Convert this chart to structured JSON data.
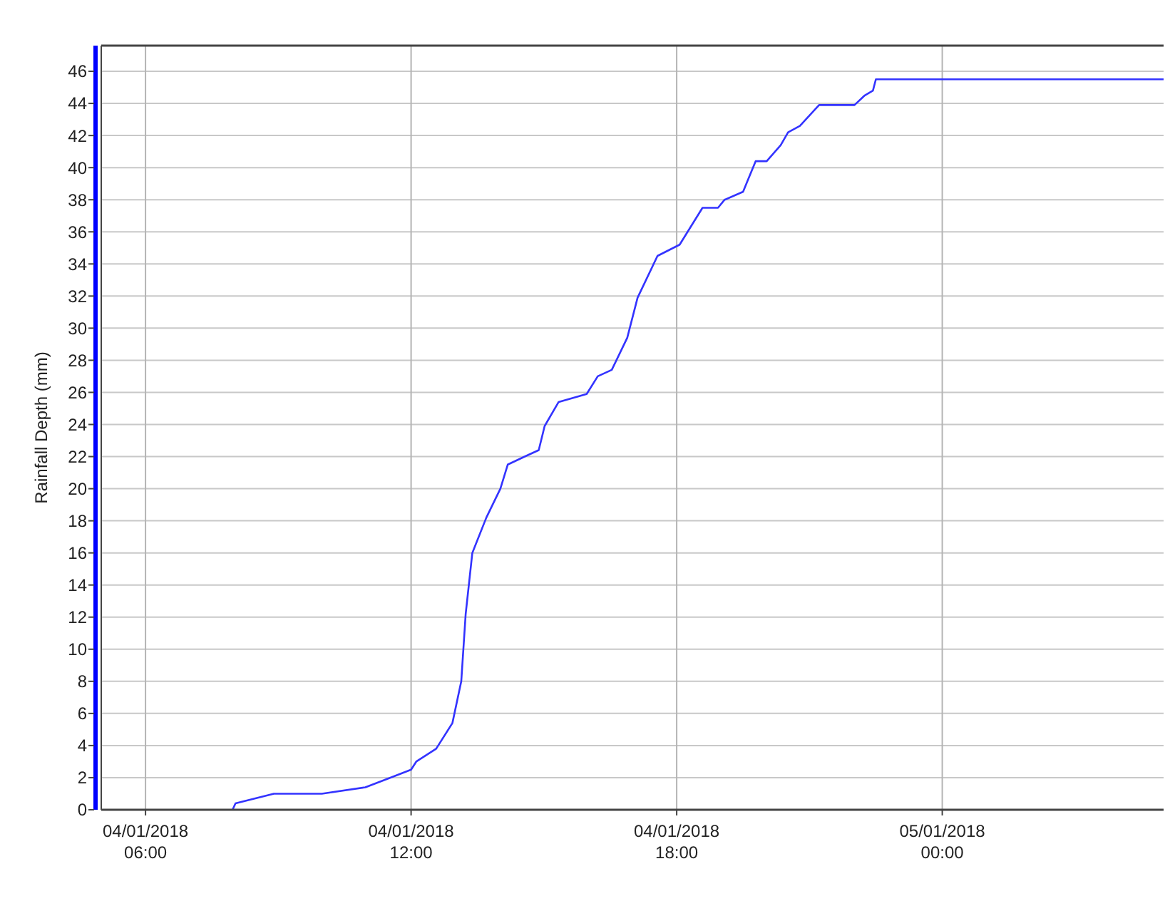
{
  "chart_data": {
    "type": "line",
    "ylabel": "Rainfall Depth (mm)",
    "grid": true,
    "marker": "none",
    "line_style": "solid",
    "xlim": [
      "2018-01-04T05:00",
      "2018-01-05T05:00"
    ],
    "xticks": [
      {
        "value": "2018-01-04T06:00",
        "label": "04/01/2018\n06:00"
      },
      {
        "value": "2018-01-04T12:00",
        "label": "04/01/2018\n12:00"
      },
      {
        "value": "2018-01-04T18:00",
        "label": "04/01/2018\n18:00"
      },
      {
        "value": "2018-01-05T00:00",
        "label": "05/01/2018\n00:00"
      }
    ],
    "ylim": [
      0,
      47.6
    ],
    "yticks": [
      0,
      2,
      4,
      6,
      8,
      10,
      12,
      14,
      16,
      18,
      20,
      22,
      24,
      26,
      28,
      30,
      32,
      34,
      36,
      38,
      40,
      42,
      44,
      46
    ],
    "series": [
      {
        "color": "#3333ff",
        "x": [
          "2018-01-04T07:58",
          "2018-01-04T08:02",
          "2018-01-04T08:54",
          "2018-01-04T09:59",
          "2018-01-04T10:58",
          "2018-01-04T11:32",
          "2018-01-04T12:00",
          "2018-01-04T12:07",
          "2018-01-04T12:34",
          "2018-01-04T12:56",
          "2018-01-04T13:08",
          "2018-01-04T13:14",
          "2018-01-04T13:23",
          "2018-01-04T13:42",
          "2018-01-04T14:01",
          "2018-01-04T14:11",
          "2018-01-04T14:34",
          "2018-01-04T14:53",
          "2018-01-04T15:01",
          "2018-01-04T15:20",
          "2018-01-04T15:58",
          "2018-01-04T16:13",
          "2018-01-04T16:32",
          "2018-01-04T16:53",
          "2018-01-04T17:07",
          "2018-01-04T17:34",
          "2018-01-04T18:04",
          "2018-01-04T18:35",
          "2018-01-04T18:56",
          "2018-01-04T19:05",
          "2018-01-04T19:30",
          "2018-01-04T19:47",
          "2018-01-04T20:02",
          "2018-01-04T20:21",
          "2018-01-04T20:31",
          "2018-01-04T20:47",
          "2018-01-04T21:13",
          "2018-01-04T22:01",
          "2018-01-04T22:15",
          "2018-01-04T22:26",
          "2018-01-04T22:30",
          "2018-01-05T05:00"
        ],
        "values": [
          0,
          0.4,
          1.0,
          1.0,
          1.4,
          2.0,
          2.5,
          3.0,
          3.8,
          5.4,
          8.0,
          12.2,
          16.0,
          18.2,
          20.0,
          21.5,
          22.0,
          22.4,
          23.9,
          25.4,
          25.9,
          27.0,
          27.4,
          29.4,
          31.9,
          34.5,
          35.2,
          37.5,
          37.5,
          38.0,
          38.5,
          40.4,
          40.4,
          41.4,
          42.2,
          42.6,
          43.9,
          43.9,
          44.5,
          44.8,
          45.5,
          45.5
        ]
      }
    ]
  }
}
